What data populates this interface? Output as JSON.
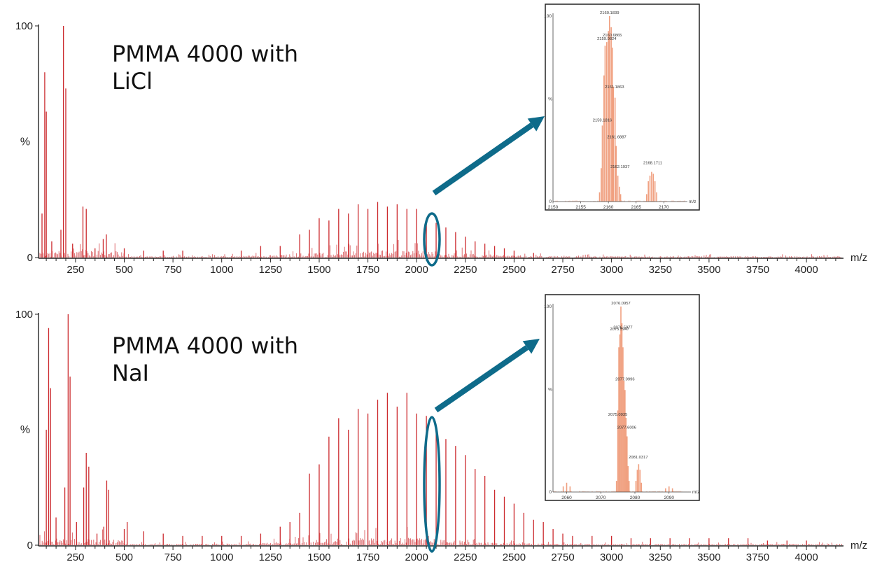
{
  "chart_data": [
    {
      "type": "bar",
      "title_lines": [
        "PMMA 4000 with",
        "LiCl"
      ],
      "xlabel": "m/z",
      "ylabel": "%",
      "xlim": [
        60,
        4190
      ],
      "ylim": [
        0,
        100
      ],
      "y_ticks": [
        0,
        100
      ],
      "x_ticks": [
        250,
        500,
        750,
        1000,
        1250,
        1500,
        1750,
        2000,
        2250,
        2500,
        2750,
        3000,
        3250,
        3500,
        3750,
        4000
      ],
      "color": "#cc2a2e",
      "peaks": [
        {
          "x": 78,
          "y": 19
        },
        {
          "x": 92,
          "y": 80
        },
        {
          "x": 100,
          "y": 63
        },
        {
          "x": 128,
          "y": 7
        },
        {
          "x": 175,
          "y": 12
        },
        {
          "x": 188,
          "y": 100
        },
        {
          "x": 200,
          "y": 73
        },
        {
          "x": 235,
          "y": 6
        },
        {
          "x": 288,
          "y": 22
        },
        {
          "x": 305,
          "y": 21
        },
        {
          "x": 350,
          "y": 4
        },
        {
          "x": 392,
          "y": 8
        },
        {
          "x": 408,
          "y": 10
        },
        {
          "x": 500,
          "y": 4
        },
        {
          "x": 600,
          "y": 3
        },
        {
          "x": 700,
          "y": 3
        },
        {
          "x": 800,
          "y": 3
        },
        {
          "x": 1100,
          "y": 3
        },
        {
          "x": 1200,
          "y": 5
        },
        {
          "x": 1300,
          "y": 5
        },
        {
          "x": 1400,
          "y": 10
        },
        {
          "x": 1450,
          "y": 12
        },
        {
          "x": 1500,
          "y": 17
        },
        {
          "x": 1550,
          "y": 16
        },
        {
          "x": 1600,
          "y": 21
        },
        {
          "x": 1650,
          "y": 19
        },
        {
          "x": 1700,
          "y": 23
        },
        {
          "x": 1750,
          "y": 21
        },
        {
          "x": 1800,
          "y": 24
        },
        {
          "x": 1850,
          "y": 22
        },
        {
          "x": 1900,
          "y": 23
        },
        {
          "x": 1950,
          "y": 21
        },
        {
          "x": 2000,
          "y": 21
        },
        {
          "x": 2050,
          "y": 17
        },
        {
          "x": 2100,
          "y": 15
        },
        {
          "x": 2150,
          "y": 13
        },
        {
          "x": 2200,
          "y": 11
        },
        {
          "x": 2250,
          "y": 9
        },
        {
          "x": 2300,
          "y": 7
        },
        {
          "x": 2350,
          "y": 6
        },
        {
          "x": 2400,
          "y": 5
        },
        {
          "x": 2450,
          "y": 4
        },
        {
          "x": 2500,
          "y": 3
        },
        {
          "x": 2600,
          "y": 2
        }
      ],
      "inset": {
        "xlim": [
          2150,
          2174
        ],
        "x_ticks": [
          2150,
          2155,
          2160,
          2165,
          2170
        ],
        "xlabel": "m/z",
        "ylabel": "%",
        "y_top_label": "100",
        "y_zero_label": "0",
        "color": "#f0a080",
        "peaks": [
          {
            "x": 2158.4,
            "y": 5
          },
          {
            "x": 2158.7,
            "y": 18
          },
          {
            "x": 2158.9,
            "y": 41
          },
          {
            "x": 2159.2,
            "y": 68
          },
          {
            "x": 2159.4,
            "y": 84
          },
          {
            "x": 2159.7,
            "y": 86
          },
          {
            "x": 2160.0,
            "y": 92
          },
          {
            "x": 2160.2,
            "y": 100
          },
          {
            "x": 2160.5,
            "y": 94
          },
          {
            "x": 2160.7,
            "y": 83
          },
          {
            "x": 2160.9,
            "y": 62
          },
          {
            "x": 2161.2,
            "y": 56
          },
          {
            "x": 2161.4,
            "y": 30
          },
          {
            "x": 2161.7,
            "y": 14
          },
          {
            "x": 2162.0,
            "y": 8
          },
          {
            "x": 2162.2,
            "y": 4
          },
          {
            "x": 2166.9,
            "y": 4
          },
          {
            "x": 2167.2,
            "y": 11
          },
          {
            "x": 2167.5,
            "y": 14
          },
          {
            "x": 2167.8,
            "y": 16
          },
          {
            "x": 2168.1,
            "y": 15
          },
          {
            "x": 2168.4,
            "y": 11
          },
          {
            "x": 2168.7,
            "y": 5
          }
        ],
        "labels": [
          {
            "text": "2160.1839",
            "x": 2160.2,
            "y": 100
          },
          {
            "text": "2159.9824",
            "x": 2159.7,
            "y": 86
          },
          {
            "text": "2160.6865",
            "x": 2160.7,
            "y": 88
          },
          {
            "text": "2161.1863",
            "x": 2161.1,
            "y": 60
          },
          {
            "text": "2159.1816",
            "x": 2158.9,
            "y": 42
          },
          {
            "text": "2161.6887",
            "x": 2161.5,
            "y": 33
          },
          {
            "text": "2162.1937",
            "x": 2162.1,
            "y": 17
          },
          {
            "text": "2168.1711",
            "x": 2168.0,
            "y": 19
          }
        ]
      }
    },
    {
      "type": "bar",
      "title_lines": [
        "PMMA 4000 with",
        "NaI"
      ],
      "xlabel": "m/z",
      "ylabel": "%",
      "xlim": [
        60,
        4190
      ],
      "ylim": [
        0,
        100
      ],
      "y_ticks": [
        0,
        100
      ],
      "x_ticks": [
        250,
        500,
        750,
        1000,
        1250,
        1500,
        1750,
        2000,
        2250,
        2500,
        2750,
        3000,
        3250,
        3500,
        3750,
        4000
      ],
      "color": "#cc2a2e",
      "peaks": [
        {
          "x": 100,
          "y": 50
        },
        {
          "x": 112,
          "y": 94
        },
        {
          "x": 122,
          "y": 68
        },
        {
          "x": 150,
          "y": 12
        },
        {
          "x": 195,
          "y": 25
        },
        {
          "x": 212,
          "y": 100
        },
        {
          "x": 222,
          "y": 73
        },
        {
          "x": 255,
          "y": 10
        },
        {
          "x": 292,
          "y": 25
        },
        {
          "x": 305,
          "y": 40
        },
        {
          "x": 318,
          "y": 34
        },
        {
          "x": 360,
          "y": 5
        },
        {
          "x": 395,
          "y": 8
        },
        {
          "x": 410,
          "y": 28
        },
        {
          "x": 420,
          "y": 24
        },
        {
          "x": 500,
          "y": 7
        },
        {
          "x": 515,
          "y": 10
        },
        {
          "x": 600,
          "y": 6
        },
        {
          "x": 700,
          "y": 5
        },
        {
          "x": 800,
          "y": 4
        },
        {
          "x": 900,
          "y": 4
        },
        {
          "x": 1000,
          "y": 4
        },
        {
          "x": 1100,
          "y": 4
        },
        {
          "x": 1200,
          "y": 5
        },
        {
          "x": 1300,
          "y": 8
        },
        {
          "x": 1350,
          "y": 10
        },
        {
          "x": 1400,
          "y": 14
        },
        {
          "x": 1450,
          "y": 31
        },
        {
          "x": 1500,
          "y": 35
        },
        {
          "x": 1550,
          "y": 47
        },
        {
          "x": 1600,
          "y": 55
        },
        {
          "x": 1650,
          "y": 50
        },
        {
          "x": 1700,
          "y": 59
        },
        {
          "x": 1750,
          "y": 57
        },
        {
          "x": 1800,
          "y": 63
        },
        {
          "x": 1850,
          "y": 66
        },
        {
          "x": 1900,
          "y": 60
        },
        {
          "x": 1950,
          "y": 66
        },
        {
          "x": 2000,
          "y": 57
        },
        {
          "x": 2050,
          "y": 56
        },
        {
          "x": 2100,
          "y": 52
        },
        {
          "x": 2150,
          "y": 46
        },
        {
          "x": 2200,
          "y": 43
        },
        {
          "x": 2250,
          "y": 39
        },
        {
          "x": 2300,
          "y": 33
        },
        {
          "x": 2350,
          "y": 30
        },
        {
          "x": 2400,
          "y": 24
        },
        {
          "x": 2450,
          "y": 21
        },
        {
          "x": 2500,
          "y": 18
        },
        {
          "x": 2550,
          "y": 14
        },
        {
          "x": 2600,
          "y": 11
        },
        {
          "x": 2650,
          "y": 10
        },
        {
          "x": 2700,
          "y": 7
        },
        {
          "x": 2750,
          "y": 5
        },
        {
          "x": 2800,
          "y": 4
        },
        {
          "x": 2900,
          "y": 4
        },
        {
          "x": 3000,
          "y": 4
        },
        {
          "x": 3100,
          "y": 3
        },
        {
          "x": 3200,
          "y": 3
        },
        {
          "x": 3300,
          "y": 3
        },
        {
          "x": 3400,
          "y": 3
        },
        {
          "x": 3500,
          "y": 3
        },
        {
          "x": 3600,
          "y": 3
        },
        {
          "x": 3700,
          "y": 3
        },
        {
          "x": 3800,
          "y": 2
        },
        {
          "x": 3900,
          "y": 2
        },
        {
          "x": 4000,
          "y": 2
        }
      ],
      "inset": {
        "xlim": [
          2056,
          2096
        ],
        "x_ticks": [
          2060,
          2070,
          2080,
          2090
        ],
        "xlabel": "m/z",
        "ylabel": "%",
        "y_top_label": "100",
        "y_zero_label": "0",
        "color": "#f0a080",
        "peaks": [
          {
            "x": 2059.0,
            "y": 3
          },
          {
            "x": 2060.0,
            "y": 5
          },
          {
            "x": 2061.0,
            "y": 3
          },
          {
            "x": 2074.6,
            "y": 6
          },
          {
            "x": 2075.0,
            "y": 44
          },
          {
            "x": 2075.3,
            "y": 78
          },
          {
            "x": 2075.6,
            "y": 85
          },
          {
            "x": 2075.9,
            "y": 100
          },
          {
            "x": 2076.2,
            "y": 91
          },
          {
            "x": 2076.5,
            "y": 78
          },
          {
            "x": 2076.8,
            "y": 60
          },
          {
            "x": 2077.1,
            "y": 55
          },
          {
            "x": 2077.4,
            "y": 40
          },
          {
            "x": 2077.7,
            "y": 30
          },
          {
            "x": 2078.0,
            "y": 14
          },
          {
            "x": 2078.3,
            "y": 6
          },
          {
            "x": 2080.3,
            "y": 6
          },
          {
            "x": 2080.7,
            "y": 12
          },
          {
            "x": 2081.1,
            "y": 15
          },
          {
            "x": 2081.5,
            "y": 12
          },
          {
            "x": 2081.9,
            "y": 5
          },
          {
            "x": 2089.0,
            "y": 2
          },
          {
            "x": 2090.0,
            "y": 3
          },
          {
            "x": 2091.0,
            "y": 2
          }
        ],
        "labels": [
          {
            "text": "2076.0957",
            "x": 2075.9,
            "y": 100
          },
          {
            "text": "2075.5947",
            "x": 2075.5,
            "y": 86
          },
          {
            "text": "2076.5977",
            "x": 2076.5,
            "y": 87
          },
          {
            "text": "2077.0996",
            "x": 2077.1,
            "y": 59
          },
          {
            "text": "2075.0935",
            "x": 2075.0,
            "y": 40
          },
          {
            "text": "2077.6006",
            "x": 2077.6,
            "y": 33
          },
          {
            "text": "2081.0317",
            "x": 2081.0,
            "y": 17
          }
        ]
      }
    }
  ],
  "annotation_color": "#0e6b8a"
}
